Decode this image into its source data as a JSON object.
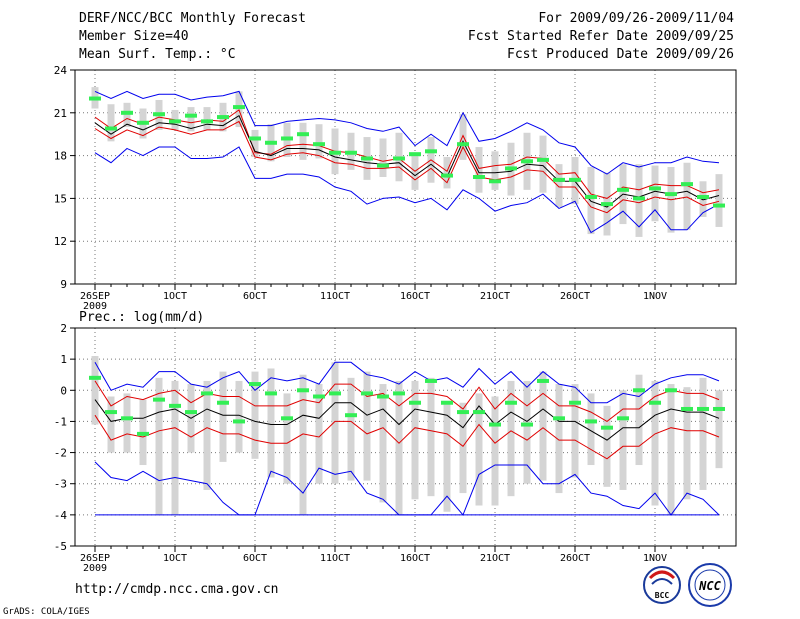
{
  "header": {
    "title": "DERF/NCC/BCC Monthly Forecast",
    "member_size": "Member Size=40",
    "variable": "Mean Surf. Temp.: °C",
    "period": "For 2009/09/26-2009/11/04",
    "fcst_started": "Fcst Started Refer Date 2009/09/25",
    "fcst_produced": "Fcst Produced Date 2009/09/26"
  },
  "footer": {
    "url": "http://cmdp.ncc.cma.gov.cn",
    "grads": "GrADS: COLA/IGES",
    "logo_bcc": "BCC",
    "logo_ncc": "NCC"
  },
  "colors": {
    "ensemble_max_min": "#0000ee",
    "ensemble_spread": "#e00000",
    "ensemble_mean": "#000000",
    "member_range": "#d4d4d4",
    "median": "#33ee55"
  },
  "x_ticks": [
    "26SEP",
    "1OCT",
    "6OCT",
    "11OCT",
    "16OCT",
    "21OCT",
    "26OCT",
    "1NOV"
  ],
  "x_year": "2009",
  "chart_data": [
    {
      "type": "line",
      "title": "Mean Surf. Temp.: °C",
      "ylim": [
        9,
        24
      ],
      "yticks": [
        9,
        12,
        15,
        18,
        21,
        24
      ],
      "grid": true,
      "days": 40,
      "series": [
        {
          "name": "max",
          "values": [
            18.2,
            17.5,
            18.5,
            18.0,
            18.6,
            18.6,
            17.8,
            17.8,
            17.9,
            18.6,
            16.4,
            16.4,
            16.7,
            16.7,
            16.5,
            15.8,
            15.5,
            14.6,
            15.0,
            15.1,
            14.7,
            15.0,
            14.2,
            15.6,
            15.0,
            14.1,
            14.5,
            14.7,
            15.3,
            14.3,
            14.8,
            12.6,
            13.3,
            14.1,
            13.0,
            14.2,
            12.8,
            12.8,
            14.0,
            14.6
          ]
        },
        {
          "name": "upper",
          "values": [
            20.7,
            19.9,
            20.6,
            20.2,
            20.7,
            20.5,
            20.3,
            20.5,
            20.4,
            21.2,
            18.2,
            18.1,
            18.7,
            18.8,
            18.7,
            18.3,
            18.2,
            17.9,
            17.6,
            17.8,
            16.9,
            17.7,
            16.9,
            19.4,
            17.1,
            17.3,
            17.4,
            17.9,
            17.8,
            16.7,
            16.8,
            15.3,
            15.0,
            15.8,
            15.6,
            16.0,
            15.9,
            15.9,
            15.4,
            15.6
          ]
        },
        {
          "name": "mean",
          "values": [
            20.3,
            19.5,
            20.2,
            19.8,
            20.3,
            20.2,
            19.9,
            20.2,
            20.1,
            20.8,
            18.3,
            18.0,
            18.5,
            18.5,
            18.4,
            17.9,
            17.7,
            17.5,
            17.4,
            17.5,
            16.6,
            17.4,
            16.5,
            19.0,
            16.8,
            16.8,
            16.9,
            17.4,
            17.3,
            16.2,
            16.2,
            14.8,
            14.4,
            15.3,
            15.1,
            15.5,
            15.3,
            15.5,
            14.9,
            15.2
          ]
        },
        {
          "name": "lower",
          "values": [
            19.9,
            19.2,
            19.8,
            19.4,
            20.0,
            19.8,
            19.5,
            19.8,
            19.8,
            20.4,
            17.9,
            17.7,
            18.1,
            18.2,
            18.0,
            17.5,
            17.4,
            17.1,
            17.1,
            17.2,
            16.3,
            17.1,
            16.1,
            18.6,
            16.5,
            16.3,
            16.5,
            17.0,
            16.9,
            15.8,
            15.8,
            14.4,
            14.0,
            14.9,
            14.7,
            15.1,
            14.9,
            15.1,
            14.5,
            14.8
          ]
        },
        {
          "name": "min",
          "values": [
            22.5,
            22.0,
            22.5,
            22.0,
            22.3,
            22.3,
            21.9,
            22.1,
            22.2,
            22.5,
            20.1,
            20.1,
            20.4,
            20.5,
            20.6,
            20.5,
            20.3,
            19.9,
            19.7,
            20.0,
            18.7,
            19.5,
            18.7,
            21.0,
            19.0,
            19.2,
            19.7,
            20.3,
            19.8,
            18.9,
            18.6,
            17.3,
            16.7,
            17.5,
            17.2,
            17.5,
            17.5,
            17.9,
            17.6,
            17.5
          ]
        }
      ],
      "median": [
        22.0,
        19.9,
        21.0,
        20.3,
        20.9,
        20.4,
        20.8,
        20.4,
        20.7,
        21.4,
        19.2,
        18.9,
        19.2,
        19.5,
        18.8,
        18.2,
        18.2,
        17.8,
        17.3,
        17.8,
        18.1,
        18.3,
        16.6,
        18.8,
        16.5,
        16.2,
        17.1,
        17.6,
        17.7,
        16.3,
        16.3,
        15.1,
        14.6,
        15.6,
        15.0,
        15.7,
        15.3,
        16.0,
        15.1,
        14.5
      ],
      "member_range": [
        [
          21.3,
          22.8
        ],
        [
          19.0,
          21.6
        ],
        [
          20.0,
          21.7
        ],
        [
          19.2,
          21.3
        ],
        [
          19.8,
          21.9
        ],
        [
          19.8,
          21.2
        ],
        [
          19.7,
          21.4
        ],
        [
          19.8,
          21.4
        ],
        [
          19.7,
          21.7
        ],
        [
          20.0,
          22.5
        ],
        [
          17.9,
          19.8
        ],
        [
          17.6,
          20.2
        ],
        [
          17.9,
          20.3
        ],
        [
          17.7,
          20.3
        ],
        [
          17.8,
          20.2
        ],
        [
          16.7,
          19.9
        ],
        [
          17.0,
          19.6
        ],
        [
          16.3,
          19.3
        ],
        [
          16.5,
          19.2
        ],
        [
          16.2,
          19.6
        ],
        [
          15.6,
          18.2
        ],
        [
          16.1,
          19.3
        ],
        [
          15.7,
          17.9
        ],
        [
          17.7,
          20.9
        ],
        [
          15.4,
          18.6
        ],
        [
          15.6,
          18.3
        ],
        [
          15.2,
          18.9
        ],
        [
          15.6,
          19.6
        ],
        [
          15.4,
          19.4
        ],
        [
          14.4,
          17.4
        ],
        [
          14.6,
          17.9
        ],
        [
          12.5,
          17.2
        ],
        [
          12.4,
          16.8
        ],
        [
          13.2,
          17.4
        ],
        [
          12.3,
          17.4
        ],
        [
          13.4,
          17.3
        ],
        [
          12.6,
          17.2
        ],
        [
          12.8,
          17.5
        ],
        [
          13.7,
          16.2
        ],
        [
          13.0,
          16.7
        ]
      ]
    },
    {
      "type": "line",
      "title": "Prec.: log(mm/d)",
      "ylim": [
        -5,
        2
      ],
      "yticks": [
        -5,
        -4,
        -3,
        -2,
        -1,
        0,
        1,
        2
      ],
      "grid": true,
      "days": 40,
      "series": [
        {
          "name": "max",
          "values": [
            0.9,
            0.0,
            0.2,
            0.1,
            0.6,
            0.6,
            0.2,
            0.1,
            0.4,
            0.6,
            0.0,
            0.4,
            0.3,
            0.4,
            0.2,
            0.9,
            0.9,
            0.5,
            0.4,
            0.2,
            0.6,
            0.3,
            0.4,
            0.1,
            0.7,
            0.2,
            0.6,
            0.1,
            0.6,
            0.2,
            0.1,
            -0.4,
            -0.4,
            -0.1,
            -0.2,
            0.2,
            0.4,
            0.5,
            0.5,
            0.3
          ]
        },
        {
          "name": "upper",
          "values": [
            0.3,
            -0.5,
            -0.2,
            -0.3,
            -0.1,
            0.0,
            -0.4,
            -0.1,
            -0.2,
            -0.2,
            -0.5,
            -0.5,
            -0.5,
            -0.3,
            -0.4,
            0.2,
            0.2,
            -0.2,
            -0.1,
            -0.5,
            -0.1,
            -0.1,
            -0.2,
            -0.6,
            0.1,
            -0.6,
            -0.1,
            -0.5,
            -0.1,
            -0.5,
            -0.5,
            -0.7,
            -1.0,
            -0.6,
            -0.6,
            -0.2,
            0.0,
            -0.1,
            -0.1,
            -0.3
          ]
        },
        {
          "name": "mean",
          "values": [
            -0.3,
            -1.0,
            -0.9,
            -0.9,
            -0.7,
            -0.6,
            -0.9,
            -0.6,
            -0.8,
            -0.8,
            -1.0,
            -1.1,
            -1.1,
            -0.8,
            -0.9,
            -0.4,
            -0.4,
            -0.8,
            -0.6,
            -1.1,
            -0.6,
            -0.7,
            -0.8,
            -1.2,
            -0.5,
            -1.1,
            -0.7,
            -1.0,
            -0.6,
            -1.0,
            -1.0,
            -1.3,
            -1.6,
            -1.2,
            -1.2,
            -0.8,
            -0.6,
            -0.7,
            -0.7,
            -0.9
          ]
        },
        {
          "name": "lower",
          "values": [
            -0.8,
            -1.6,
            -1.4,
            -1.5,
            -1.3,
            -1.2,
            -1.5,
            -1.2,
            -1.4,
            -1.4,
            -1.6,
            -1.7,
            -1.7,
            -1.4,
            -1.5,
            -1.0,
            -1.0,
            -1.4,
            -1.2,
            -1.7,
            -1.2,
            -1.3,
            -1.4,
            -1.8,
            -1.1,
            -1.7,
            -1.3,
            -1.6,
            -1.2,
            -1.6,
            -1.6,
            -1.9,
            -2.2,
            -1.8,
            -1.8,
            -1.4,
            -1.2,
            -1.3,
            -1.3,
            -1.5
          ]
        },
        {
          "name": "min",
          "values": [
            -2.3,
            -2.8,
            -2.9,
            -2.6,
            -2.9,
            -2.8,
            -2.9,
            -3.0,
            -3.6,
            -4.0,
            -4.0,
            -2.6,
            -2.8,
            -3.3,
            -2.5,
            -2.7,
            -2.6,
            -3.3,
            -3.5,
            -4.0,
            -4.0,
            -4.0,
            -3.4,
            -4.0,
            -2.7,
            -2.4,
            -2.4,
            -2.4,
            -3.0,
            -3.0,
            -2.7,
            -3.3,
            -3.4,
            -3.7,
            -3.8,
            -3.3,
            -4.0,
            -3.3,
            -3.5,
            -4.0
          ]
        }
      ],
      "floor": -4.0,
      "median": [
        0.4,
        -0.7,
        -0.9,
        -1.4,
        -0.3,
        -0.5,
        -0.7,
        -0.1,
        -0.4,
        -1.0,
        0.2,
        -0.1,
        -0.9,
        0.0,
        -0.2,
        -0.1,
        -0.8,
        -0.1,
        -0.2,
        -0.1,
        -0.4,
        0.3,
        -0.4,
        -0.7,
        -0.7,
        -1.1,
        -0.4,
        -1.1,
        0.3,
        -0.9,
        -0.4,
        -1.0,
        -1.2,
        -0.9,
        0.0,
        -0.4,
        0.0,
        -0.6,
        -0.6,
        -0.6
      ],
      "member_range": [
        [
          -1.1,
          1.1
        ],
        [
          -2.0,
          -0.2
        ],
        [
          -2.0,
          -0.1
        ],
        [
          -2.4,
          -0.3
        ],
        [
          -4.0,
          0.4
        ],
        [
          -4.0,
          0.3
        ],
        [
          -2.0,
          0.2
        ],
        [
          -3.2,
          0.3
        ],
        [
          -2.3,
          0.6
        ],
        [
          -2.0,
          0.3
        ],
        [
          -2.2,
          0.6
        ],
        [
          -2.8,
          0.7
        ],
        [
          -3.0,
          -0.1
        ],
        [
          -4.0,
          0.5
        ],
        [
          -3.0,
          0.2
        ],
        [
          -3.0,
          0.9
        ],
        [
          -2.9,
          0.4
        ],
        [
          -2.9,
          0.6
        ],
        [
          -3.6,
          0.2
        ],
        [
          -4.0,
          0.3
        ],
        [
          -3.5,
          0.3
        ],
        [
          -3.4,
          0.4
        ],
        [
          -3.9,
          -0.4
        ],
        [
          -3.3,
          -0.4
        ],
        [
          -3.7,
          -0.1
        ],
        [
          -3.7,
          -0.2
        ],
        [
          -3.4,
          0.3
        ],
        [
          -3.0,
          0.3
        ],
        [
          -2.9,
          0.6
        ],
        [
          -3.3,
          0.2
        ],
        [
          -2.8,
          0.2
        ],
        [
          -2.4,
          -0.1
        ],
        [
          -3.1,
          -0.5
        ],
        [
          -3.2,
          0.0
        ],
        [
          -2.4,
          0.5
        ],
        [
          -3.7,
          0.3
        ],
        [
          -4.0,
          0.2
        ],
        [
          -3.5,
          0.1
        ],
        [
          -3.2,
          0.4
        ],
        [
          -2.5,
          0.0
        ]
      ]
    }
  ]
}
